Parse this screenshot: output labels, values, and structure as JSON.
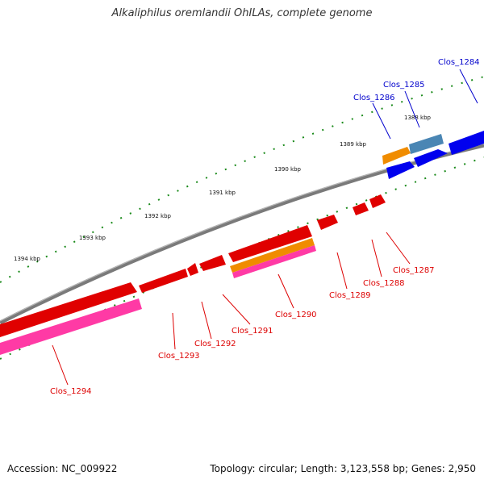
{
  "title": "Alkaliphilus oremlandii OhILAs, complete genome",
  "footer": {
    "accession": "Accession: NC_009922",
    "summary": "Topology: circular; Length: 3,123,558 bp; Genes: 2,950"
  },
  "colors": {
    "backbone": "#808080",
    "tick": "#1a8a1a",
    "plus_strand_gene": "#0000ee",
    "minus_strand_gene": "#ee0000",
    "cds_orange": "#f08c00",
    "cds_steel": "#4a86b4",
    "cds_pink": "#ff3aa5",
    "label_blue": "#0000cc",
    "label_red": "#dd0000"
  },
  "scale_labels": [
    "1388 kbp",
    "1389 kbp",
    "1390 kbp",
    "1391 kbp",
    "1392 kbp",
    "1393 kbp",
    "1394 kbp"
  ],
  "gene_labels": [
    {
      "text": "Clos_1284",
      "strand": "plus"
    },
    {
      "text": "Clos_1285",
      "strand": "plus"
    },
    {
      "text": "Clos_1286",
      "strand": "plus"
    },
    {
      "text": "Clos_1287",
      "strand": "minus"
    },
    {
      "text": "Clos_1288",
      "strand": "minus"
    },
    {
      "text": "Clos_1289",
      "strand": "minus"
    },
    {
      "text": "Clos_1290",
      "strand": "minus"
    },
    {
      "text": "Clos_1291",
      "strand": "minus"
    },
    {
      "text": "Clos_1292",
      "strand": "minus"
    },
    {
      "text": "Clos_1293",
      "strand": "minus"
    },
    {
      "text": "Clos_1294",
      "strand": "minus"
    }
  ]
}
